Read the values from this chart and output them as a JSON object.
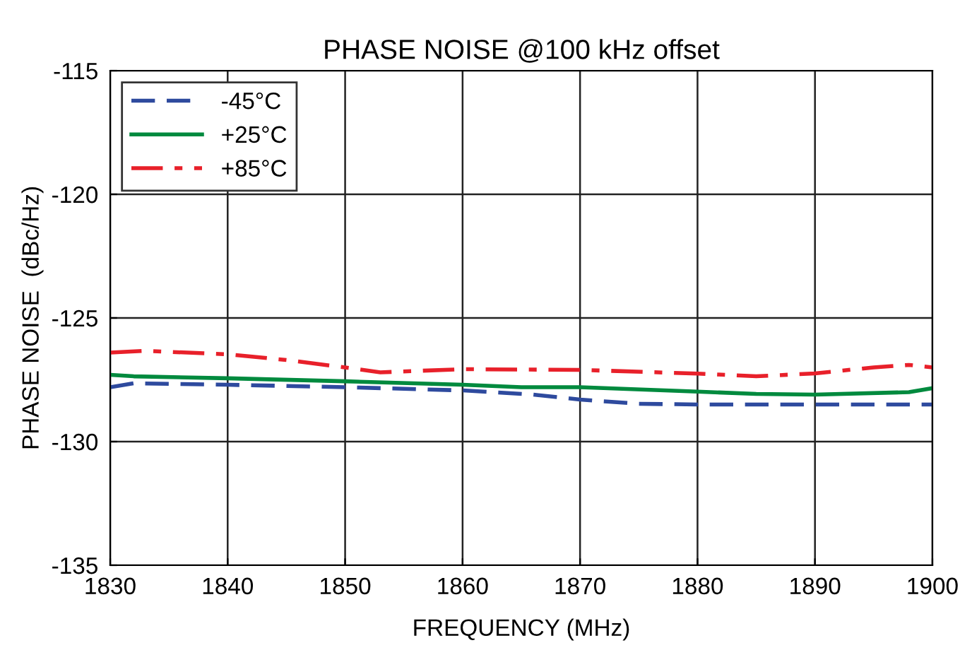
{
  "chart_data": {
    "type": "line",
    "title": "PHASE NOISE @100 kHz offset",
    "xlabel": "FREQUENCY (MHz)",
    "ylabel": "PHASE NOISE  (dBc/Hz)",
    "xlim": [
      1830,
      1900
    ],
    "xticks": [
      1830,
      1840,
      1850,
      1860,
      1870,
      1880,
      1890,
      1900
    ],
    "ylim": [
      -135,
      -115
    ],
    "yticks": [
      -135,
      -130,
      -125,
      -120,
      -115
    ],
    "grid": true,
    "legend": "top left",
    "series": [
      {
        "name": "-45°C",
        "color": "#2e4a9e",
        "line_style": "dashed",
        "x": [
          1830,
          1832,
          1840,
          1850,
          1860,
          1866,
          1870,
          1875,
          1880,
          1890,
          1900
        ],
        "values": [
          -127.8,
          -127.64,
          -127.7,
          -127.8,
          -127.93,
          -128.1,
          -128.3,
          -128.47,
          -128.5,
          -128.5,
          -128.5
        ]
      },
      {
        "name": "+25°C",
        "color": "#008a3e",
        "line_style": "solid",
        "x": [
          1830,
          1832,
          1840,
          1850,
          1860,
          1865,
          1870,
          1880,
          1885,
          1890,
          1898,
          1900
        ],
        "values": [
          -127.3,
          -127.36,
          -127.44,
          -127.56,
          -127.7,
          -127.8,
          -127.8,
          -127.98,
          -128.07,
          -128.1,
          -128.0,
          -127.84
        ]
      },
      {
        "name": "+85°C",
        "color": "#e8202a",
        "line_style": "dashdot",
        "x": [
          1830,
          1833,
          1840,
          1845,
          1850,
          1853,
          1860,
          1870,
          1880,
          1885,
          1890,
          1895,
          1898,
          1900
        ],
        "values": [
          -126.4,
          -126.33,
          -126.47,
          -126.7,
          -127.0,
          -127.2,
          -127.07,
          -127.1,
          -127.25,
          -127.36,
          -127.24,
          -127.0,
          -126.9,
          -127.0
        ]
      }
    ]
  }
}
